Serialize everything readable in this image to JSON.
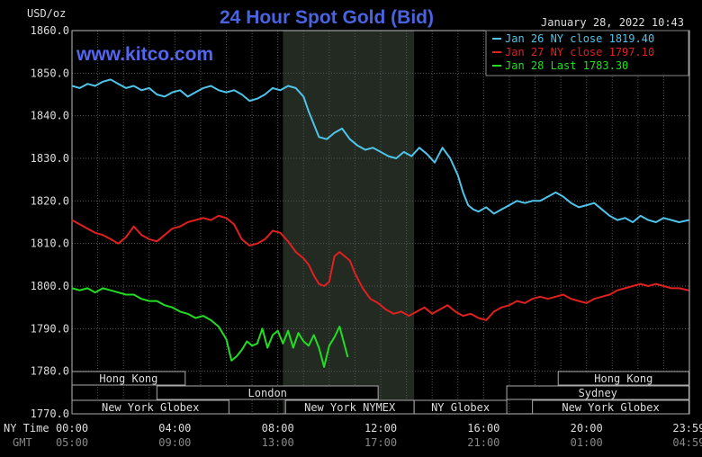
{
  "chart_data": {
    "type": "line",
    "title": "24 Hour Spot Gold (Bid)",
    "watermark": "www.kitco.com",
    "ylabel": "USD/oz",
    "timestamp": "January 28, 2022 10:43",
    "ylim": [
      1770,
      1860
    ],
    "y_ticks": [
      "1860.0",
      "1850.0",
      "1840.0",
      "1830.0",
      "1820.0",
      "1810.0",
      "1800.0",
      "1790.0",
      "1780.0",
      "1770.0"
    ],
    "x_row_labels": {
      "ny": "NY Time",
      "gmt": "GMT"
    },
    "x_ticks_ny": [
      "00:00",
      "04:00",
      "08:00",
      "12:00",
      "16:00",
      "20:00",
      "23:59"
    ],
    "x_ticks_gmt": [
      "05:00",
      "09:00",
      "13:00",
      "17:00",
      "21:00",
      "01:00",
      "04:59"
    ],
    "x_tick_hours": [
      0,
      4,
      8,
      12,
      16,
      20,
      23.98
    ],
    "shaded_session_hours": [
      8.2,
      13.3
    ],
    "grid": true,
    "legend_position": "top-right",
    "series": [
      {
        "name": "Jan 26 NY close 1819.40",
        "color": "#4fc3e8",
        "hours": [
          0,
          0.3,
          0.6,
          0.9,
          1.2,
          1.5,
          1.8,
          2.1,
          2.4,
          2.7,
          3.0,
          3.3,
          3.6,
          3.9,
          4.2,
          4.5,
          4.8,
          5.1,
          5.4,
          5.7,
          6.0,
          6.3,
          6.6,
          6.9,
          7.2,
          7.5,
          7.8,
          8.1,
          8.4,
          8.7,
          9.0,
          9.2,
          9.4,
          9.6,
          9.9,
          10.2,
          10.5,
          10.8,
          11.1,
          11.4,
          11.7,
          12.0,
          12.3,
          12.6,
          12.9,
          13.2,
          13.5,
          13.8,
          14.1,
          14.4,
          14.7,
          15.0,
          15.2,
          15.4,
          15.6,
          15.8,
          16.1,
          16.4,
          16.7,
          17.0,
          17.3,
          17.6,
          17.9,
          18.2,
          18.5,
          18.8,
          19.1,
          19.4,
          19.7,
          20.0,
          20.3,
          20.6,
          20.9,
          21.2,
          21.5,
          21.8,
          22.1,
          22.4,
          22.7,
          23.0,
          23.3,
          23.6,
          23.98
        ],
        "values": [
          1847.0,
          1846.5,
          1847.5,
          1847.0,
          1848.0,
          1848.5,
          1847.5,
          1846.5,
          1847.0,
          1846.0,
          1846.5,
          1845.0,
          1844.5,
          1845.5,
          1846.0,
          1844.5,
          1845.5,
          1846.5,
          1847.0,
          1846.0,
          1845.5,
          1846.0,
          1845.0,
          1843.5,
          1844.0,
          1845.0,
          1846.5,
          1846.0,
          1847.0,
          1846.5,
          1844.5,
          1841.0,
          1838.0,
          1835.0,
          1834.5,
          1836.0,
          1837.0,
          1834.5,
          1833.0,
          1832.0,
          1832.5,
          1831.5,
          1830.5,
          1830.0,
          1831.5,
          1830.5,
          1832.5,
          1831.0,
          1829.0,
          1832.5,
          1830.0,
          1826.0,
          1822.0,
          1819.0,
          1818.0,
          1817.5,
          1818.5,
          1817.0,
          1818.0,
          1819.0,
          1820.0,
          1819.5,
          1820.0,
          1820.0,
          1821.0,
          1822.0,
          1821.0,
          1819.5,
          1818.5,
          1819.0,
          1819.5,
          1818.0,
          1816.5,
          1815.5,
          1816.0,
          1815.0,
          1816.5,
          1815.5,
          1815.0,
          1816.0,
          1815.5,
          1815.0,
          1815.5
        ]
      },
      {
        "name": "Jan 27 NY close 1797.10",
        "color": "#e02020",
        "hours": [
          0,
          0.3,
          0.6,
          0.9,
          1.2,
          1.5,
          1.8,
          2.1,
          2.4,
          2.7,
          3.0,
          3.3,
          3.6,
          3.9,
          4.2,
          4.5,
          4.8,
          5.1,
          5.4,
          5.7,
          6.0,
          6.3,
          6.6,
          6.9,
          7.2,
          7.5,
          7.8,
          8.1,
          8.4,
          8.7,
          9.0,
          9.2,
          9.4,
          9.6,
          9.8,
          10.0,
          10.2,
          10.4,
          10.6,
          10.8,
          11.0,
          11.3,
          11.6,
          11.9,
          12.2,
          12.5,
          12.8,
          13.1,
          13.4,
          13.7,
          14.0,
          14.3,
          14.6,
          14.9,
          15.2,
          15.5,
          15.8,
          16.1,
          16.4,
          16.7,
          17.0,
          17.3,
          17.6,
          17.9,
          18.2,
          18.5,
          18.8,
          19.1,
          19.4,
          19.7,
          20.0,
          20.3,
          20.6,
          20.9,
          21.2,
          21.5,
          21.8,
          22.1,
          22.4,
          22.7,
          23.0,
          23.3,
          23.6,
          23.98
        ],
        "values": [
          1815.5,
          1814.5,
          1813.5,
          1812.5,
          1812.0,
          1811.0,
          1810.0,
          1811.5,
          1814.0,
          1812.0,
          1811.0,
          1810.5,
          1812.0,
          1813.5,
          1814.0,
          1815.0,
          1815.5,
          1816.0,
          1815.5,
          1816.5,
          1816.0,
          1814.5,
          1811.0,
          1809.5,
          1810.0,
          1811.0,
          1813.0,
          1812.5,
          1810.5,
          1808.0,
          1806.5,
          1805.0,
          1802.5,
          1800.5,
          1800.0,
          1801.0,
          1807.0,
          1808.0,
          1807.0,
          1806.0,
          1803.0,
          1799.5,
          1797.0,
          1796.0,
          1794.5,
          1793.5,
          1794.0,
          1793.0,
          1794.0,
          1795.0,
          1793.5,
          1794.5,
          1795.5,
          1794.0,
          1793.0,
          1793.5,
          1792.5,
          1792.0,
          1794.0,
          1795.0,
          1795.5,
          1796.5,
          1796.0,
          1797.0,
          1797.5,
          1797.0,
          1797.5,
          1798.0,
          1797.0,
          1796.5,
          1796.0,
          1797.0,
          1797.5,
          1798.0,
          1799.0,
          1799.5,
          1800.0,
          1800.5,
          1800.0,
          1800.5,
          1800.0,
          1799.5,
          1799.5,
          1799.0
        ]
      },
      {
        "name": "Jan 28 Last 1783.30",
        "color": "#22dd22",
        "hours": [
          0,
          0.3,
          0.6,
          0.9,
          1.2,
          1.5,
          1.8,
          2.1,
          2.4,
          2.7,
          3.0,
          3.3,
          3.6,
          3.9,
          4.2,
          4.5,
          4.8,
          5.1,
          5.4,
          5.7,
          6.0,
          6.2,
          6.4,
          6.6,
          6.8,
          7.0,
          7.2,
          7.4,
          7.6,
          7.8,
          8.0,
          8.2,
          8.4,
          8.6,
          8.8,
          9.0,
          9.2,
          9.4,
          9.6,
          9.8,
          10.0,
          10.2,
          10.4,
          10.6,
          10.72
        ],
        "values": [
          1799.5,
          1799.0,
          1799.5,
          1798.5,
          1799.5,
          1799.0,
          1798.5,
          1798.0,
          1798.0,
          1797.0,
          1796.5,
          1796.5,
          1795.5,
          1795.0,
          1794.0,
          1793.5,
          1792.5,
          1793.0,
          1792.0,
          1790.5,
          1787.5,
          1782.5,
          1783.5,
          1785.0,
          1787.0,
          1786.0,
          1786.5,
          1790.0,
          1785.5,
          1788.5,
          1789.5,
          1786.5,
          1789.5,
          1785.5,
          1789.0,
          1787.0,
          1786.0,
          1788.5,
          1785.5,
          1781.0,
          1786.0,
          1788.0,
          1790.5,
          1786.0,
          1783.3
        ]
      }
    ],
    "session_bars": [
      {
        "label": "Hong Kong",
        "start_h": 0,
        "end_h": 4.4,
        "row": 1
      },
      {
        "label": "Hong Kong",
        "start_h": 18.9,
        "end_h": 23.98,
        "row": 1
      },
      {
        "label": "London",
        "start_h": 3.3,
        "end_h": 11.9,
        "row": 2
      },
      {
        "label": "Sydney",
        "start_h": 16.9,
        "end_h": 23.98,
        "row": 2
      },
      {
        "label": "New York Globex",
        "start_h": 0,
        "end_h": 6.1,
        "row": 3
      },
      {
        "label": "New York NYMEX",
        "start_h": 8.3,
        "end_h": 13.3,
        "row": 3
      },
      {
        "label": "NY Globex",
        "start_h": 13.3,
        "end_h": 16.9,
        "row": 3
      },
      {
        "label": "New York Globex",
        "start_h": 17.9,
        "end_h": 23.98,
        "row": 3
      }
    ]
  }
}
